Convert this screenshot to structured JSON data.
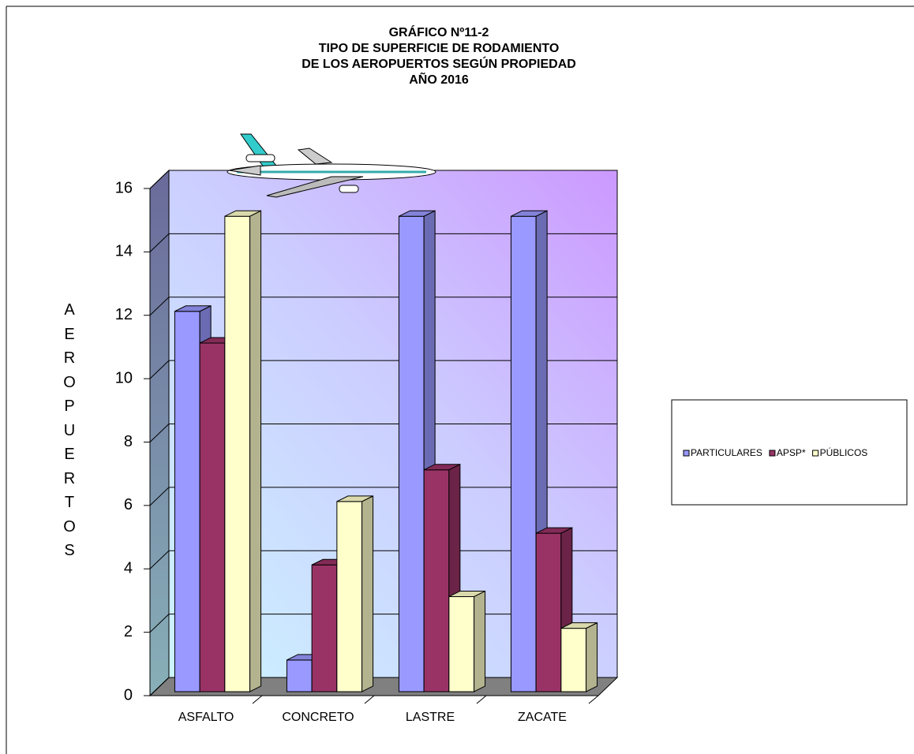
{
  "chart_data": {
    "type": "bar3d",
    "title": [
      "GRÁFICO Nº11-2",
      "TIPO DE SUPERFICIE DE RODAMIENTO",
      "DE LOS AEROPUERTOS SEGÚN PROPIEDAD",
      "AÑO 2016"
    ],
    "y_label": "AEROPUERTOS",
    "categories": [
      "ASFALTO",
      "CONCRETO",
      "LASTRE",
      "ZACATE"
    ],
    "series": [
      {
        "name": "PARTICULARES",
        "color": "#9999ff",
        "values": [
          12,
          1,
          15,
          15
        ]
      },
      {
        "name": "APSP*",
        "color": "#993366",
        "values": [
          11,
          4,
          7,
          5
        ]
      },
      {
        "name": "PÚBLICOS",
        "color": "#ffffcc",
        "values": [
          15,
          6,
          3,
          2
        ]
      }
    ],
    "ylim": [
      0,
      16
    ],
    "yticks": [
      0,
      2,
      4,
      6,
      8,
      10,
      12,
      14,
      16
    ],
    "grid": true,
    "legend": "right"
  }
}
